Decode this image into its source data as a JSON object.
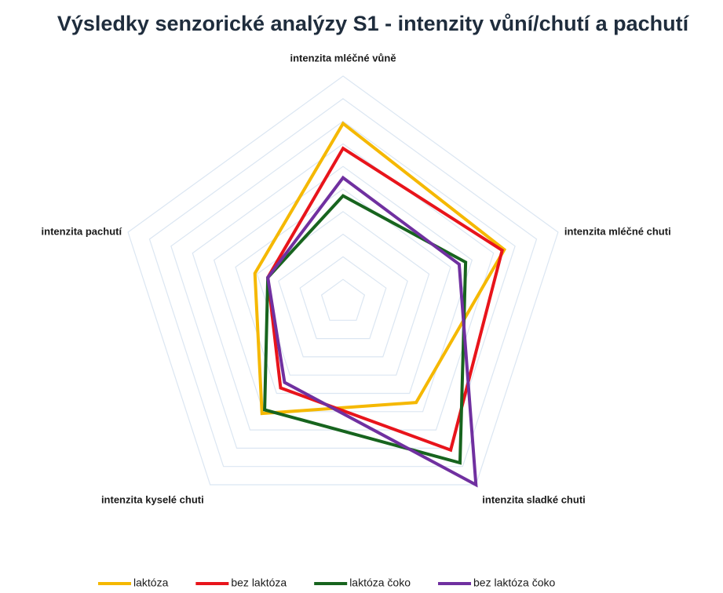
{
  "chart_data": {
    "type": "radar",
    "title": "Výsledky senzorické analýzy S1 - intenzity vůní/chutí a pachutí",
    "categories": [
      "intenzita mléčné vůně",
      "intenzita mléčné chuti",
      "intenzita sladké chuti",
      "intenzita kyselé chuti",
      "intenzita pachutí"
    ],
    "series": [
      {
        "name": "laktóza",
        "color": "#f5b800",
        "values": [
          7.9,
          7.5,
          5.5,
          6.1,
          4.1
        ]
      },
      {
        "name": "bez laktóza",
        "color": "#e8141b",
        "values": [
          6.8,
          7.4,
          8.1,
          4.7,
          3.5
        ]
      },
      {
        "name": "laktóza čoko",
        "color": "#17641e",
        "values": [
          4.7,
          5.7,
          8.8,
          5.9,
          3.5
        ]
      },
      {
        "name": "bez laktóza čoko",
        "color": "#7030a0",
        "values": [
          5.5,
          5.4,
          10,
          4.4,
          3.5
        ]
      }
    ],
    "ylim": [
      0,
      10
    ],
    "yticks": [
      1,
      2,
      3,
      4,
      5,
      6,
      7,
      8,
      9,
      10
    ],
    "grid": true,
    "legend": "bottom"
  }
}
